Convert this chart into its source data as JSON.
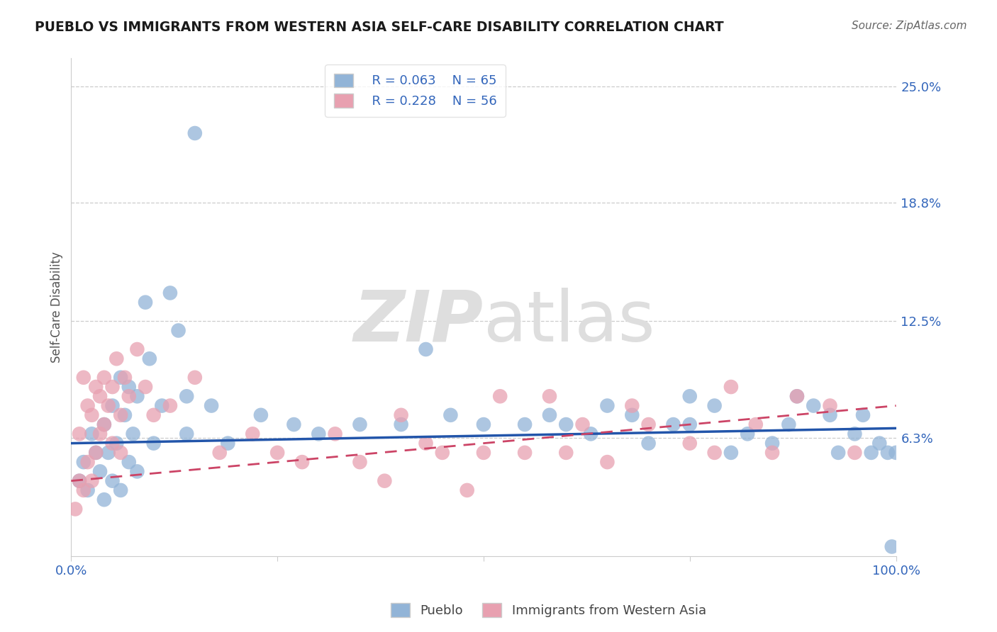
{
  "title": "PUEBLO VS IMMIGRANTS FROM WESTERN ASIA SELF-CARE DISABILITY CORRELATION CHART",
  "source": "Source: ZipAtlas.com",
  "ylabel": "Self-Care Disability",
  "xlim": [
    0,
    100
  ],
  "ylim": [
    0,
    26.5
  ],
  "ytick_vals": [
    6.3,
    12.5,
    18.8,
    25.0
  ],
  "ytick_labels": [
    "6.3%",
    "12.5%",
    "18.8%",
    "25.0%"
  ],
  "xtick_vals": [
    0,
    25,
    50,
    75,
    100
  ],
  "xtick_labels": [
    "0.0%",
    "",
    "",
    "",
    "100.0%"
  ],
  "legend_r1": "R = 0.063",
  "legend_n1": "N = 65",
  "legend_r2": "R = 0.228",
  "legend_n2": "N = 56",
  "blue_color": "#92b4d7",
  "pink_color": "#e8a0b0",
  "trend_blue_color": "#2255aa",
  "trend_pink_color": "#cc4466",
  "title_color": "#1a1a1a",
  "axis_label_color": "#3366bb",
  "grid_color": "#cccccc",
  "watermark_color": "#dedede",
  "blue_trend_intercept": 6.0,
  "blue_trend_slope": 0.008,
  "pink_trend_intercept": 4.0,
  "pink_trend_slope": 0.04,
  "blue_x": [
    1.0,
    1.5,
    2.0,
    2.5,
    3.0,
    3.5,
    4.0,
    4.0,
    4.5,
    5.0,
    5.0,
    5.5,
    6.0,
    6.0,
    6.5,
    7.0,
    7.0,
    7.5,
    8.0,
    8.0,
    9.0,
    9.5,
    10.0,
    11.0,
    12.0,
    13.0,
    14.0,
    14.0,
    15.0,
    17.0,
    19.0,
    23.0,
    27.0,
    30.0,
    35.0,
    40.0,
    43.0,
    46.0,
    50.0,
    55.0,
    58.0,
    60.0,
    63.0,
    65.0,
    68.0,
    70.0,
    73.0,
    75.0,
    75.0,
    78.0,
    80.0,
    82.0,
    85.0,
    87.0,
    88.0,
    90.0,
    92.0,
    93.0,
    95.0,
    96.0,
    97.0,
    98.0,
    99.0,
    99.5,
    100.0
  ],
  "blue_y": [
    4.0,
    5.0,
    3.5,
    6.5,
    5.5,
    4.5,
    7.0,
    3.0,
    5.5,
    8.0,
    4.0,
    6.0,
    9.5,
    3.5,
    7.5,
    5.0,
    9.0,
    6.5,
    8.5,
    4.5,
    13.5,
    10.5,
    6.0,
    8.0,
    14.0,
    12.0,
    6.5,
    8.5,
    22.5,
    8.0,
    6.0,
    7.5,
    7.0,
    6.5,
    7.0,
    7.0,
    11.0,
    7.5,
    7.0,
    7.0,
    7.5,
    7.0,
    6.5,
    8.0,
    7.5,
    6.0,
    7.0,
    8.5,
    7.0,
    8.0,
    5.5,
    6.5,
    6.0,
    7.0,
    8.5,
    8.0,
    7.5,
    5.5,
    6.5,
    7.5,
    5.5,
    6.0,
    5.5,
    0.5,
    5.5
  ],
  "pink_x": [
    0.5,
    1.0,
    1.0,
    1.5,
    1.5,
    2.0,
    2.0,
    2.5,
    2.5,
    3.0,
    3.0,
    3.5,
    3.5,
    4.0,
    4.0,
    4.5,
    5.0,
    5.0,
    5.5,
    6.0,
    6.0,
    6.5,
    7.0,
    8.0,
    9.0,
    10.0,
    12.0,
    15.0,
    18.0,
    22.0,
    25.0,
    28.0,
    32.0,
    35.0,
    38.0,
    40.0,
    43.0,
    45.0,
    48.0,
    50.0,
    52.0,
    55.0,
    58.0,
    60.0,
    62.0,
    65.0,
    68.0,
    70.0,
    75.0,
    78.0,
    80.0,
    83.0,
    85.0,
    88.0,
    92.0,
    95.0
  ],
  "pink_y": [
    2.5,
    4.0,
    6.5,
    9.5,
    3.5,
    8.0,
    5.0,
    7.5,
    4.0,
    9.0,
    5.5,
    8.5,
    6.5,
    9.5,
    7.0,
    8.0,
    9.0,
    6.0,
    10.5,
    7.5,
    5.5,
    9.5,
    8.5,
    11.0,
    9.0,
    7.5,
    8.0,
    9.5,
    5.5,
    6.5,
    5.5,
    5.0,
    6.5,
    5.0,
    4.0,
    7.5,
    6.0,
    5.5,
    3.5,
    5.5,
    8.5,
    5.5,
    8.5,
    5.5,
    7.0,
    5.0,
    8.0,
    7.0,
    6.0,
    5.5,
    9.0,
    7.0,
    5.5,
    8.5,
    8.0,
    5.5
  ]
}
